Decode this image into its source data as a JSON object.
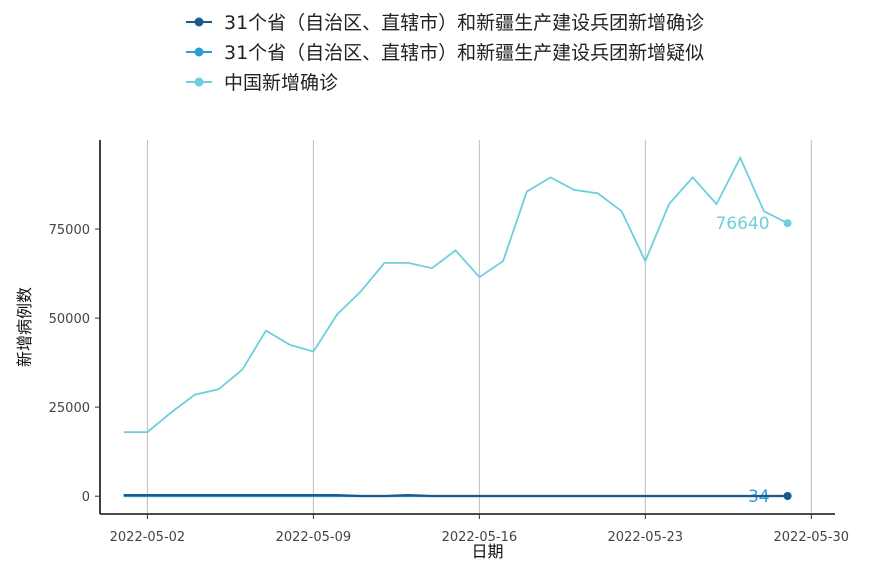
{
  "chart_data": {
    "type": "line",
    "xlabel": "日期",
    "ylabel": "新增病例数",
    "x_ticks": [
      "2022-05-02",
      "2022-05-09",
      "2022-05-16",
      "2022-05-23",
      "2022-05-30"
    ],
    "y_ticks": [
      "0",
      "25000",
      "50000",
      "75000"
    ],
    "xlim": [
      "2022-04-30",
      "2022-05-31"
    ],
    "ylim": [
      -5000,
      100000
    ],
    "grid": "vertical-major",
    "legend_position": "top",
    "x": [
      "2022-05-01",
      "2022-05-02",
      "2022-05-03",
      "2022-05-04",
      "2022-05-05",
      "2022-05-06",
      "2022-05-07",
      "2022-05-08",
      "2022-05-09",
      "2022-05-10",
      "2022-05-11",
      "2022-05-12",
      "2022-05-13",
      "2022-05-14",
      "2022-05-15",
      "2022-05-16",
      "2022-05-17",
      "2022-05-18",
      "2022-05-19",
      "2022-05-20",
      "2022-05-21",
      "2022-05-22",
      "2022-05-23",
      "2022-05-24",
      "2022-05-25",
      "2022-05-26",
      "2022-05-27",
      "2022-05-28",
      "2022-05-29"
    ],
    "series": [
      {
        "name": "31个省（自治区、直辖市）和新疆生产建设兵团新增确诊",
        "color": "#1a5a8a",
        "values": [
          300,
          300,
          300,
          300,
          300,
          300,
          300,
          300,
          300,
          300,
          60,
          60,
          300,
          60,
          60,
          60,
          60,
          60,
          60,
          60,
          60,
          60,
          60,
          60,
          60,
          60,
          60,
          60,
          60
        ]
      },
      {
        "name": "31个省（自治区、直辖市）和新疆生产建设兵团新增疑似",
        "color": "#2a9fd6",
        "values": [
          0,
          0,
          0,
          0,
          0,
          0,
          0,
          0,
          0,
          0,
          0,
          0,
          0,
          0,
          0,
          0,
          0,
          0,
          0,
          0,
          0,
          0,
          0,
          0,
          0,
          0,
          0,
          0,
          34
        ],
        "end_label": "34"
      },
      {
        "name": "中国新增确诊",
        "color": "#6ecfdc",
        "values": [
          18000,
          18000,
          23500,
          28500,
          30000,
          35500,
          46500,
          42500,
          40600,
          51000,
          57500,
          65500,
          65500,
          64000,
          69000,
          61500,
          66000,
          85500,
          89500,
          86000,
          85000,
          80000,
          66000,
          82000,
          89500,
          82000,
          95000,
          80000,
          76640
        ],
        "end_label": "76640"
      }
    ]
  }
}
